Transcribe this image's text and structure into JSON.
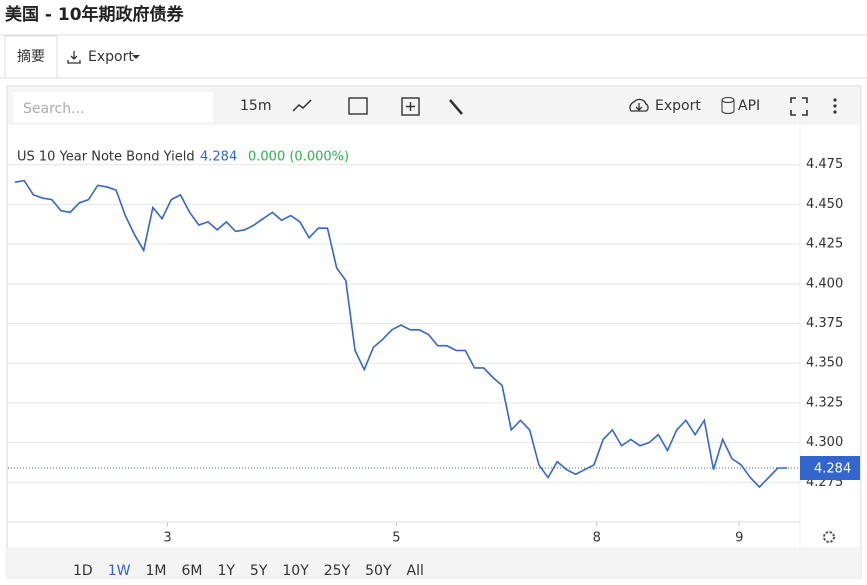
{
  "header": {
    "title": "美国 - 10年期政府债券",
    "tabs": [
      "摘要",
      "Export"
    ]
  },
  "toolbar": {
    "search_placeholder": "Search...",
    "interval": "15m",
    "export": "Export",
    "api": "API"
  },
  "chart_data": {
    "type": "line",
    "series": [
      {
        "name": "US 10 Year Note Bond Yield",
        "color": "#3366cc",
        "values": [
          4.464,
          4.465,
          4.456,
          4.454,
          4.453,
          4.446,
          4.445,
          4.451,
          4.453,
          4.462,
          4.461,
          4.459,
          4.443,
          4.431,
          4.421,
          4.448,
          4.441,
          4.453,
          4.456,
          4.445,
          4.437,
          4.439,
          4.434,
          4.439,
          4.433,
          4.434,
          4.437,
          4.441,
          4.445,
          4.44,
          4.443,
          4.439,
          4.429,
          4.435,
          4.435,
          4.41,
          4.402,
          4.358,
          4.346,
          4.36,
          4.365,
          4.371,
          4.374,
          4.371,
          4.371,
          4.368,
          4.361,
          4.361,
          4.358,
          4.358,
          4.347,
          4.347,
          4.341,
          4.336,
          4.308,
          4.314,
          4.308,
          4.286,
          4.278,
          4.288,
          4.283,
          4.28,
          4.283,
          4.286,
          4.302,
          4.308,
          4.298,
          4.302,
          4.298,
          4.3,
          4.305,
          4.295,
          4.308,
          4.314,
          4.305,
          4.314,
          4.283,
          4.302,
          4.29,
          4.286,
          4.278,
          4.272,
          4.278,
          4.284,
          4.284
        ]
      }
    ],
    "last_value": 4.284,
    "change_label": "0.000 (0.000%)",
    "xlim": [
      0,
      84
    ],
    "xticks": [
      {
        "value": 16.6,
        "label": "3"
      },
      {
        "value": 41.5,
        "label": "5"
      },
      {
        "value": 63.3,
        "label": "8"
      },
      {
        "value": 78.8,
        "label": "9"
      }
    ],
    "ylim": [
      4.25,
      4.5
    ],
    "yticks": [
      {
        "value": 4.275,
        "label": "4.275"
      },
      {
        "value": 4.3,
        "label": "4.300"
      },
      {
        "value": 4.325,
        "label": "4.325"
      },
      {
        "value": 4.35,
        "label": "4.350"
      },
      {
        "value": 4.375,
        "label": "4.375"
      },
      {
        "value": 4.4,
        "label": "4.400"
      },
      {
        "value": 4.425,
        "label": "4.425"
      },
      {
        "value": 4.45,
        "label": "4.450"
      },
      {
        "value": 4.475,
        "label": "4.475"
      }
    ],
    "grid": true
  },
  "ranges": {
    "options": [
      "1D",
      "1W",
      "1M",
      "6M",
      "1Y",
      "5Y",
      "10Y",
      "25Y",
      "50Y",
      "All"
    ],
    "active": "1W"
  }
}
